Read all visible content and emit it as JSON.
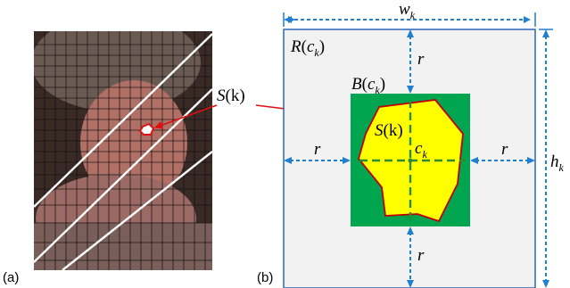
{
  "panel_a": {
    "caption": "(a)",
    "region_label": {
      "symbol": "S",
      "arg": "(k)"
    }
  },
  "panel_b": {
    "caption": "(b)",
    "width_label": {
      "symbol": "w",
      "sub": "k"
    },
    "height_label": {
      "symbol": "h",
      "sub": "k"
    },
    "outer_label": {
      "symbol": "R",
      "open": "(",
      "sub_symbol": "c",
      "sub": "k",
      "close": ")"
    },
    "inner_label": {
      "symbol": "B",
      "open": "(",
      "sub_symbol": "c",
      "sub": "k",
      "close": ")"
    },
    "region_label": {
      "symbol": "S",
      "arg": "(k)"
    },
    "center_label": {
      "symbol": "c",
      "sub": "k"
    },
    "r_top": "r",
    "r_left": "r",
    "r_right": "r",
    "r_bottom": "r"
  },
  "colors": {
    "outer_box_fill": "#f2f2f2",
    "outer_box_stroke": "#0070c0",
    "green_box": "#00a54f",
    "region_fill": "#ffff00",
    "region_stroke": "#c00000",
    "dashed_lines": "#1f7fd0",
    "center_dash": "#2e8b2e",
    "connector": "#e01010"
  }
}
